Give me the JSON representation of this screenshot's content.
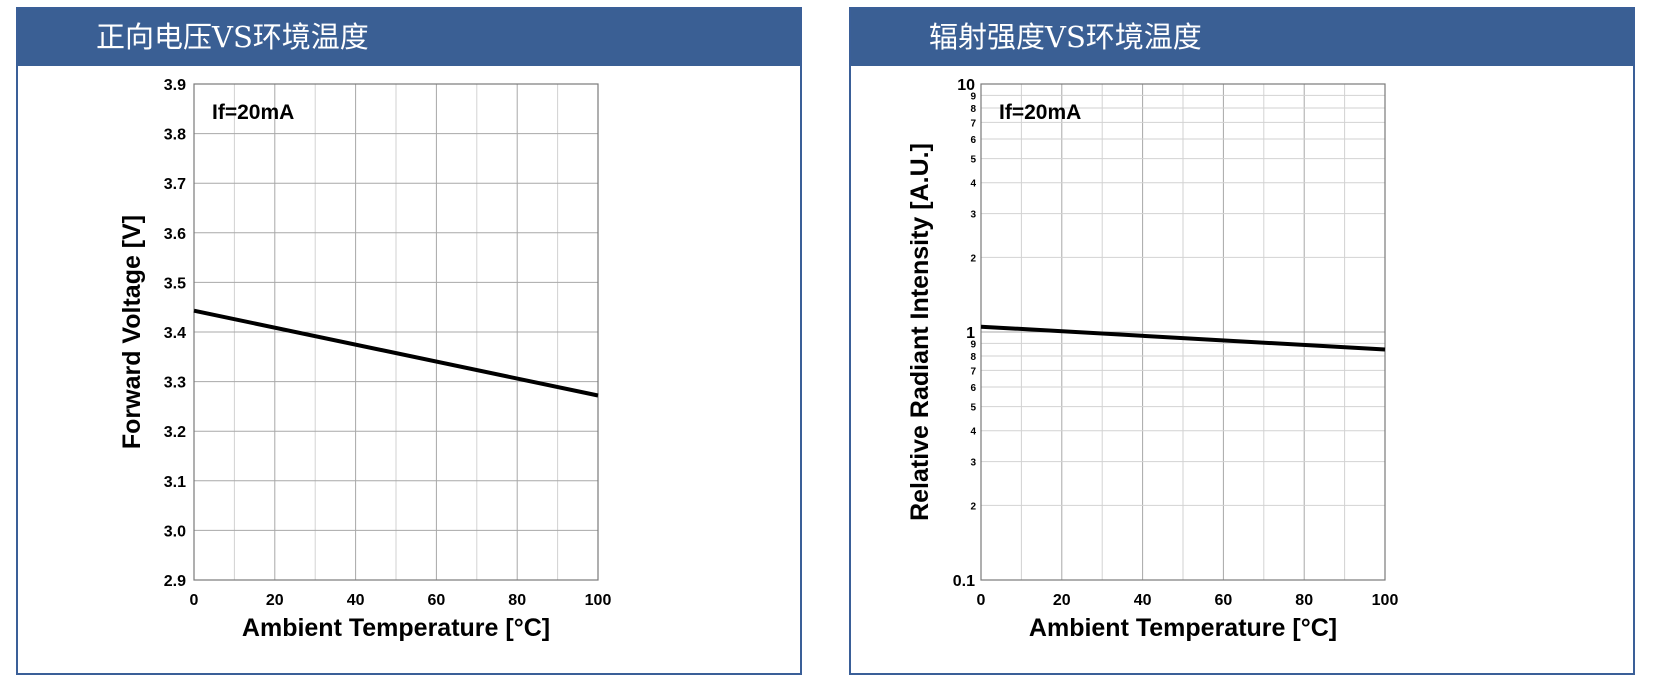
{
  "panels": [
    {
      "title": "正向电压VS环境温度",
      "chart_data": {
        "type": "line",
        "xlabel": "Ambient Temperature [°C]",
        "ylabel": "Forward Voltage [V]",
        "xlim": [
          0,
          100
        ],
        "ylim": [
          2.9,
          3.9
        ],
        "y_scale": "linear",
        "grid": true,
        "x_ticks": [
          0,
          20,
          40,
          60,
          80,
          100
        ],
        "x_tick_labels": [
          "0",
          "20",
          "40",
          "60",
          "80",
          "100"
        ],
        "y_ticks": [
          2.9,
          3.0,
          3.1,
          3.2,
          3.3,
          3.4,
          3.5,
          3.6,
          3.7,
          3.8,
          3.9
        ],
        "y_tick_labels": [
          "2.9",
          "3.0",
          "3.1",
          "3.2",
          "3.3",
          "3.4",
          "3.5",
          "3.6",
          "3.7",
          "3.8",
          "3.9"
        ],
        "annotation": "If=20mA",
        "series": [
          {
            "x": [
              0,
              100
            ],
            "y": [
              3.443,
              3.272
            ]
          }
        ]
      }
    },
    {
      "title": "辐射强度VS环境温度",
      "chart_data": {
        "type": "line",
        "xlabel": "Ambient Temperature [°C]",
        "ylabel": "Relative Radiant Intensity [A.U.]",
        "xlim": [
          0,
          100
        ],
        "ylim": [
          0.1,
          10
        ],
        "y_scale": "log",
        "grid": true,
        "x_ticks": [
          0,
          20,
          40,
          60,
          80,
          100
        ],
        "x_tick_labels": [
          "0",
          "20",
          "40",
          "60",
          "80",
          "100"
        ],
        "y_major_ticks": [
          0.1,
          1,
          10
        ],
        "y_major_tick_labels": [
          "0.1",
          "1",
          "10"
        ],
        "y_minor_tick_labels": [
          "2",
          "3",
          "4",
          "5",
          "6",
          "7",
          "8",
          "9"
        ],
        "annotation": "If=20mA",
        "series": [
          {
            "x": [
              0,
              100
            ],
            "y": [
              1.05,
              0.85
            ]
          }
        ]
      }
    }
  ]
}
